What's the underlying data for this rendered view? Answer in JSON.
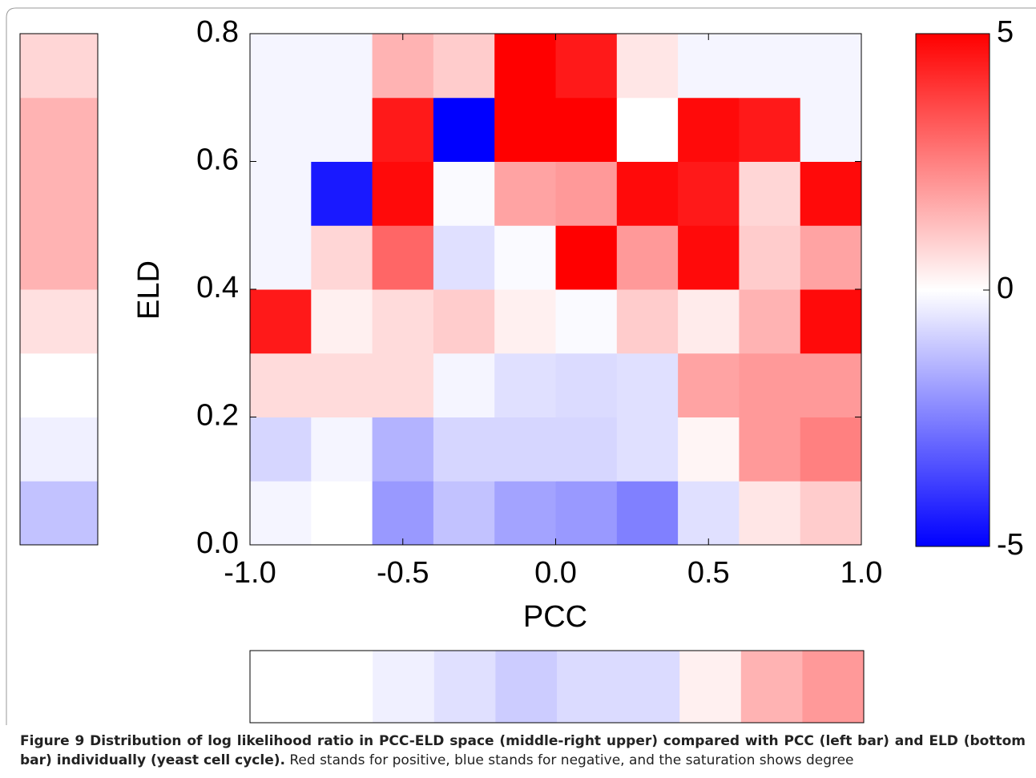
{
  "chart_data": {
    "type": "heatmap",
    "xlabel": "PCC",
    "ylabel": "ELD",
    "xbins": [
      -1.0,
      -0.8,
      -0.6,
      -0.4,
      -0.2,
      0.0,
      0.2,
      0.4,
      0.6,
      0.8,
      1.0
    ],
    "ybins": [
      0.0,
      0.1,
      0.2,
      0.3,
      0.4,
      0.5,
      0.6,
      0.7,
      0.8
    ],
    "z": [
      [
        -0.2,
        0,
        -2,
        -1.2,
        -1.8,
        -2,
        -2.5,
        -0.6,
        0.5,
        1
      ],
      [
        -0.8,
        -0.2,
        -1.5,
        -0.8,
        -0.8,
        -0.8,
        -0.6,
        0.2,
        2,
        2.5
      ],
      [
        0.7,
        0.7,
        0.7,
        -0.2,
        -0.6,
        -0.7,
        -0.6,
        1.8,
        2,
        2
      ],
      [
        4.5,
        0.3,
        0.7,
        1,
        0.3,
        -0.1,
        1,
        0.4,
        1.5,
        4.8
      ],
      [
        -0.2,
        0.8,
        3,
        -0.6,
        -0.1,
        5,
        2,
        4.8,
        1,
        1.8
      ],
      [
        -0.2,
        -4.5,
        4.8,
        -0.1,
        1.8,
        2,
        4.8,
        4.5,
        0.8,
        4.8
      ],
      [
        -0.2,
        -0.2,
        4.5,
        -5,
        5,
        5,
        0,
        4.8,
        4.5,
        -0.2
      ],
      [
        -0.2,
        -0.2,
        1.5,
        1,
        5,
        4.5,
        0.5,
        -0.2,
        -0.2,
        -0.2
      ]
    ],
    "xlim": [
      -1.0,
      1.0
    ],
    "xticks": [
      {
        "value": -1.0,
        "label": "-1.0"
      },
      -0.5,
      {
        "value": 0.0,
        "label": "0.0"
      },
      0.5,
      {
        "value": 1.0,
        "label": "1.0"
      }
    ],
    "ylim": [
      0.0,
      0.8
    ],
    "yticks": [
      {
        "value": 0.0,
        "label": "0.0"
      },
      0.2,
      0.4,
      0.6,
      0.8
    ],
    "clim": [
      -5,
      5
    ],
    "cticks": [
      5,
      0,
      -5
    ],
    "left_bar": [
      -1.2,
      -0.3,
      0,
      0.6,
      1.5,
      1.5,
      1.5,
      0.8
    ],
    "bottom_bar": [
      0,
      0,
      -0.3,
      -0.6,
      -1,
      -0.7,
      -0.7,
      0.3,
      1.5,
      2
    ]
  },
  "caption": {
    "bold": "Figure 9 Distribution of log likelihood ratio in PCC-ELD space (middle-right upper) compared with PCC (left bar) and ELD (bottom bar) individually (yeast cell cycle).",
    "text": "Red stands for positive, blue stands for negative, and the saturation shows degree"
  }
}
